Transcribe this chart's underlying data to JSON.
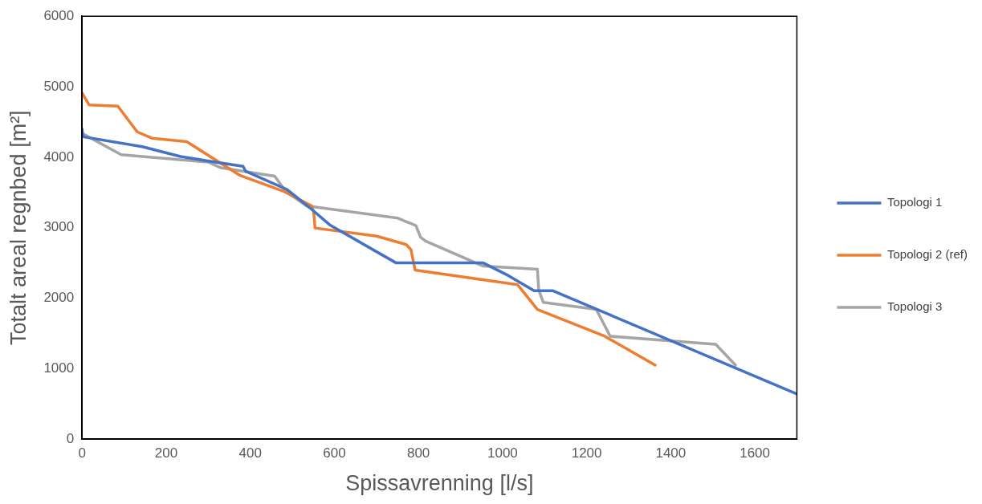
{
  "chart_data": {
    "type": "line",
    "xlabel": "Spissavrenning [l/s]",
    "ylabel": "Totalt areal regnbed [m²]",
    "xlim": [
      0,
      1700
    ],
    "xticks": [
      0,
      200,
      400,
      600,
      800,
      1000,
      1200,
      1400,
      1600
    ],
    "ylim": [
      0,
      6000
    ],
    "yticks": [
      0,
      1000,
      2000,
      3000,
      4000,
      5000,
      6000
    ],
    "grid": false,
    "legend": "right",
    "marker": "none",
    "line_style": "solid",
    "series": [
      {
        "name": "Topologi 1",
        "color": "#4472c4",
        "x": [
          0,
          2,
          143,
          234,
          295,
          383,
          389,
          488,
          543,
          589,
          747,
          954,
          1014,
          1075,
          1120,
          1700
        ],
        "values": [
          4400,
          4290,
          4150,
          4010,
          3950,
          3870,
          3800,
          3540,
          3275,
          3040,
          2500,
          2500,
          2320,
          2105,
          2105,
          640
        ]
      },
      {
        "name": "Topologi 2 (ref)",
        "color": "#ed7d31",
        "x": [
          0,
          17,
          85,
          131,
          166,
          249,
          376,
          478,
          546,
          551,
          554,
          701,
          771,
          782,
          792,
          1036,
          1083,
          1243,
          1363
        ],
        "values": [
          4910,
          4740,
          4725,
          4360,
          4270,
          4220,
          3740,
          3520,
          3310,
          3215,
          2995,
          2880,
          2760,
          2690,
          2400,
          2190,
          1840,
          1460,
          1050
        ]
      },
      {
        "name": "Topologi 3",
        "color": "#a5a5a5",
        "x": [
          0,
          93,
          300,
          330,
          458,
          485,
          534,
          751,
          794,
          805,
          817,
          954,
          1083,
          1086,
          1097,
          1223,
          1256,
          1507,
          1554
        ],
        "values": [
          4340,
          4035,
          3930,
          3850,
          3730,
          3510,
          3310,
          3135,
          3030,
          2865,
          2810,
          2455,
          2410,
          2115,
          1940,
          1840,
          1460,
          1345,
          1050
        ]
      }
    ]
  }
}
